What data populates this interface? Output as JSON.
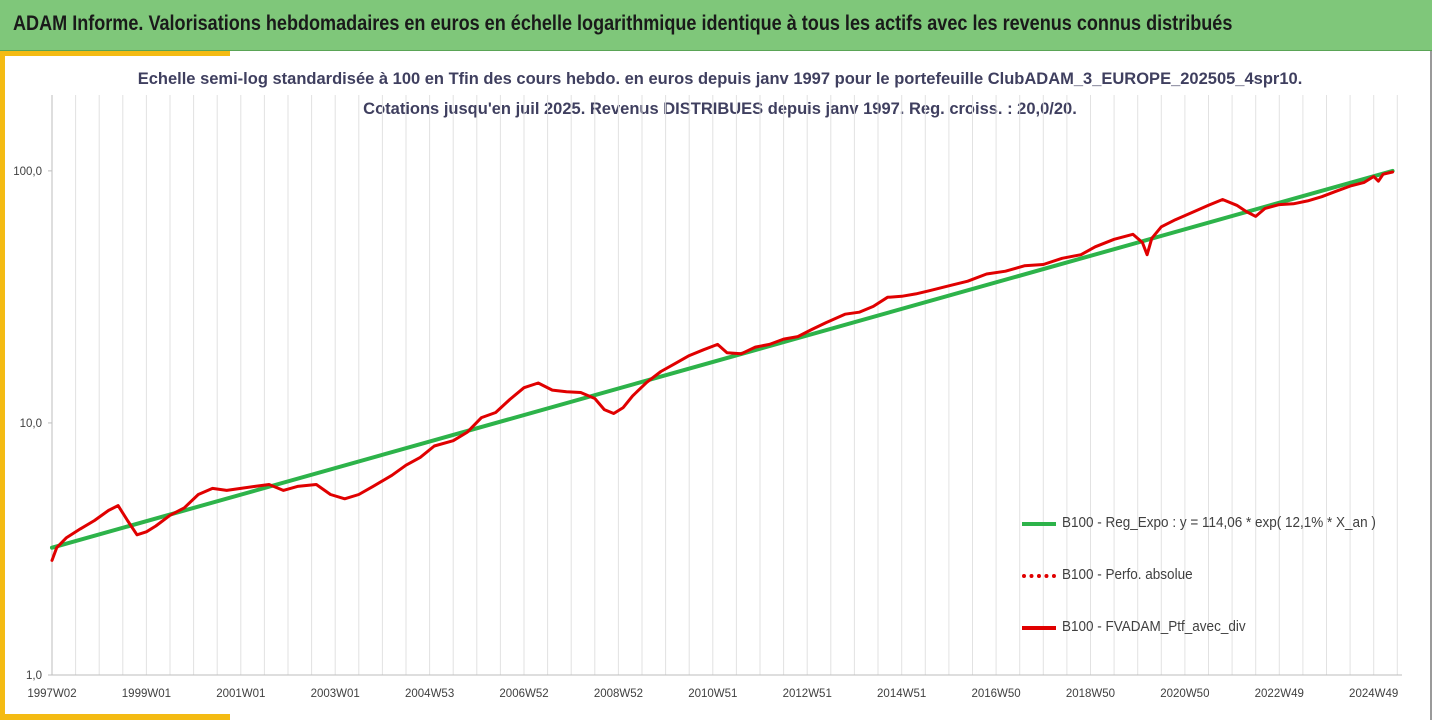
{
  "header": {
    "title": "ADAM Informe. Valorisations hebdomadaires en euros en échelle logarithmique identique à tous les actifs avec les revenus connus distribués"
  },
  "chart_data": {
    "type": "line",
    "title_line1": "Echelle semi-log standardisée à 100 en Tfin des cours hebdo.  en euros depuis janv 1997 pour le portefeuille ClubADAM_3_EUROPE_202505_4spr10.",
    "title_line2": "Cotations  jusqu'en juil 2025. Revenus DISTRIBUES depuis janv 1997. Reg. croiss. : 20,0/20.",
    "y_scale": "log",
    "ylim": [
      1,
      200
    ],
    "xlim": [
      1997.0,
      2025.6
    ],
    "y_ticks": [
      {
        "value": 1,
        "label": "1,0"
      },
      {
        "value": 10,
        "label": "10,0"
      },
      {
        "value": 100,
        "label": "100,0"
      }
    ],
    "x_ticks": [
      {
        "value": 1997.0,
        "label": "1997W02"
      },
      {
        "value": 1999.0,
        "label": "1999W01"
      },
      {
        "value": 2001.0,
        "label": "2001W01"
      },
      {
        "value": 2003.0,
        "label": "2003W01"
      },
      {
        "value": 2005.0,
        "label": "2004W53"
      },
      {
        "value": 2007.0,
        "label": "2006W52"
      },
      {
        "value": 2009.0,
        "label": "2008W52"
      },
      {
        "value": 2011.0,
        "label": "2010W51"
      },
      {
        "value": 2013.0,
        "label": "2012W51"
      },
      {
        "value": 2015.0,
        "label": "2014W51"
      },
      {
        "value": 2017.0,
        "label": "2016W50"
      },
      {
        "value": 2019.0,
        "label": "2018W50"
      },
      {
        "value": 2021.0,
        "label": "2020W50"
      },
      {
        "value": 2023.0,
        "label": "2022W49"
      },
      {
        "value": 2025.0,
        "label": "2024W49"
      }
    ],
    "grid": "vertical",
    "legend_position": "bottom-right",
    "series": [
      {
        "name": "B100 - Reg_Expo : y = 114,06 * exp( 12,1% *  X_an )",
        "color": "#2db34a",
        "style": "solid",
        "x": [
          1997.0,
          2025.4
        ],
        "y": [
          3.2,
          100
        ]
      },
      {
        "name": "B100 - Perfo. absolue",
        "color": "#e00000",
        "style": "dotted",
        "x": [],
        "y": []
      },
      {
        "name": "B100 - FVADAM_Ptf_avec_div",
        "color": "#e00000",
        "style": "solid",
        "x": [
          1997.0,
          1997.1,
          1997.3,
          1997.6,
          1997.9,
          1998.2,
          1998.4,
          1998.6,
          1998.8,
          1999.0,
          1999.2,
          1999.5,
          1999.8,
          2000.1,
          2000.4,
          2000.7,
          2001.0,
          2001.3,
          2001.6,
          2001.9,
          2002.2,
          2002.6,
          2002.9,
          2003.2,
          2003.5,
          2003.8,
          2004.2,
          2004.5,
          2004.8,
          2005.1,
          2005.5,
          2005.8,
          2006.1,
          2006.4,
          2006.7,
          2007.0,
          2007.3,
          2007.6,
          2007.9,
          2008.2,
          2008.5,
          2008.7,
          2008.9,
          2009.1,
          2009.3,
          2009.6,
          2009.9,
          2010.2,
          2010.5,
          2010.8,
          2011.1,
          2011.3,
          2011.6,
          2011.9,
          2012.2,
          2012.5,
          2012.8,
          2013.1,
          2013.4,
          2013.8,
          2014.1,
          2014.4,
          2014.7,
          2015.0,
          2015.3,
          2015.6,
          2016.0,
          2016.4,
          2016.8,
          2017.2,
          2017.6,
          2018.0,
          2018.4,
          2018.8,
          2019.1,
          2019.5,
          2019.9,
          2020.1,
          2020.2,
          2020.3,
          2020.5,
          2020.8,
          2021.2,
          2021.5,
          2021.8,
          2022.1,
          2022.3,
          2022.5,
          2022.7,
          2023.0,
          2023.3,
          2023.6,
          2023.9,
          2024.2,
          2024.5,
          2024.8,
          2025.0,
          2025.1,
          2025.2,
          2025.4
        ],
        "y": [
          2.85,
          3.2,
          3.5,
          3.8,
          4.1,
          4.5,
          4.7,
          4.1,
          3.6,
          3.7,
          3.9,
          4.3,
          4.6,
          5.2,
          5.5,
          5.4,
          5.5,
          5.6,
          5.7,
          5.4,
          5.6,
          5.7,
          5.2,
          5.0,
          5.2,
          5.6,
          6.2,
          6.8,
          7.3,
          8.1,
          8.5,
          9.2,
          10.5,
          11.0,
          12.4,
          13.8,
          14.4,
          13.5,
          13.3,
          13.2,
          12.5,
          11.3,
          10.9,
          11.5,
          12.8,
          14.5,
          16.0,
          17.2,
          18.5,
          19.5,
          20.5,
          19.0,
          18.8,
          20.0,
          20.5,
          21.5,
          22.0,
          23.5,
          25.0,
          27.0,
          27.5,
          29.0,
          31.5,
          31.8,
          32.5,
          33.5,
          35.0,
          36.5,
          39.0,
          40.0,
          42.0,
          42.5,
          45.0,
          46.5,
          50.0,
          53.5,
          56.0,
          52.0,
          46.5,
          54.0,
          60.0,
          64.0,
          69.0,
          73.0,
          77.0,
          73.0,
          69.0,
          66.0,
          71.0,
          73.5,
          74.0,
          76.0,
          79.0,
          83.0,
          87.0,
          90.0,
          95.0,
          91.0,
          97.0,
          99.0
        ]
      }
    ]
  }
}
